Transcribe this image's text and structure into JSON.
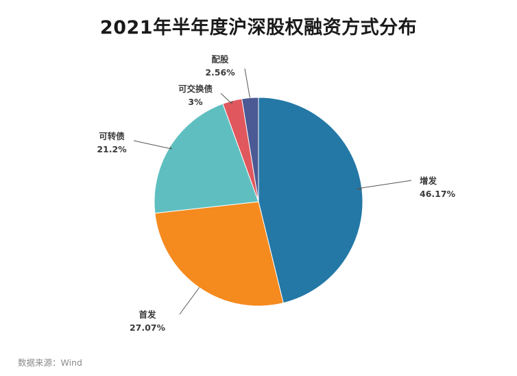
{
  "title": "2021年半年度沪深股权融资方式分布",
  "source": "数据来源：Wind",
  "watermark": "Wind",
  "chart_data": {
    "type": "pie",
    "title": "2021年半年度沪深股权融资方式分布",
    "slices": [
      {
        "name": "增发",
        "value": 46.17,
        "label": "46.17%",
        "color": "#2478a6"
      },
      {
        "name": "首发",
        "value": 27.07,
        "label": "27.07%",
        "color": "#f58a1f"
      },
      {
        "name": "可转债",
        "value": 21.2,
        "label": "21.2%",
        "color": "#5fbfc0"
      },
      {
        "name": "可交换债",
        "value": 3,
        "label": "3%",
        "color": "#e0585e"
      },
      {
        "name": "配股",
        "value": 2.56,
        "label": "2.56%",
        "color": "#4b5a94"
      }
    ],
    "start": "12 o'clock",
    "direction": "clockwise",
    "legend": "none"
  }
}
